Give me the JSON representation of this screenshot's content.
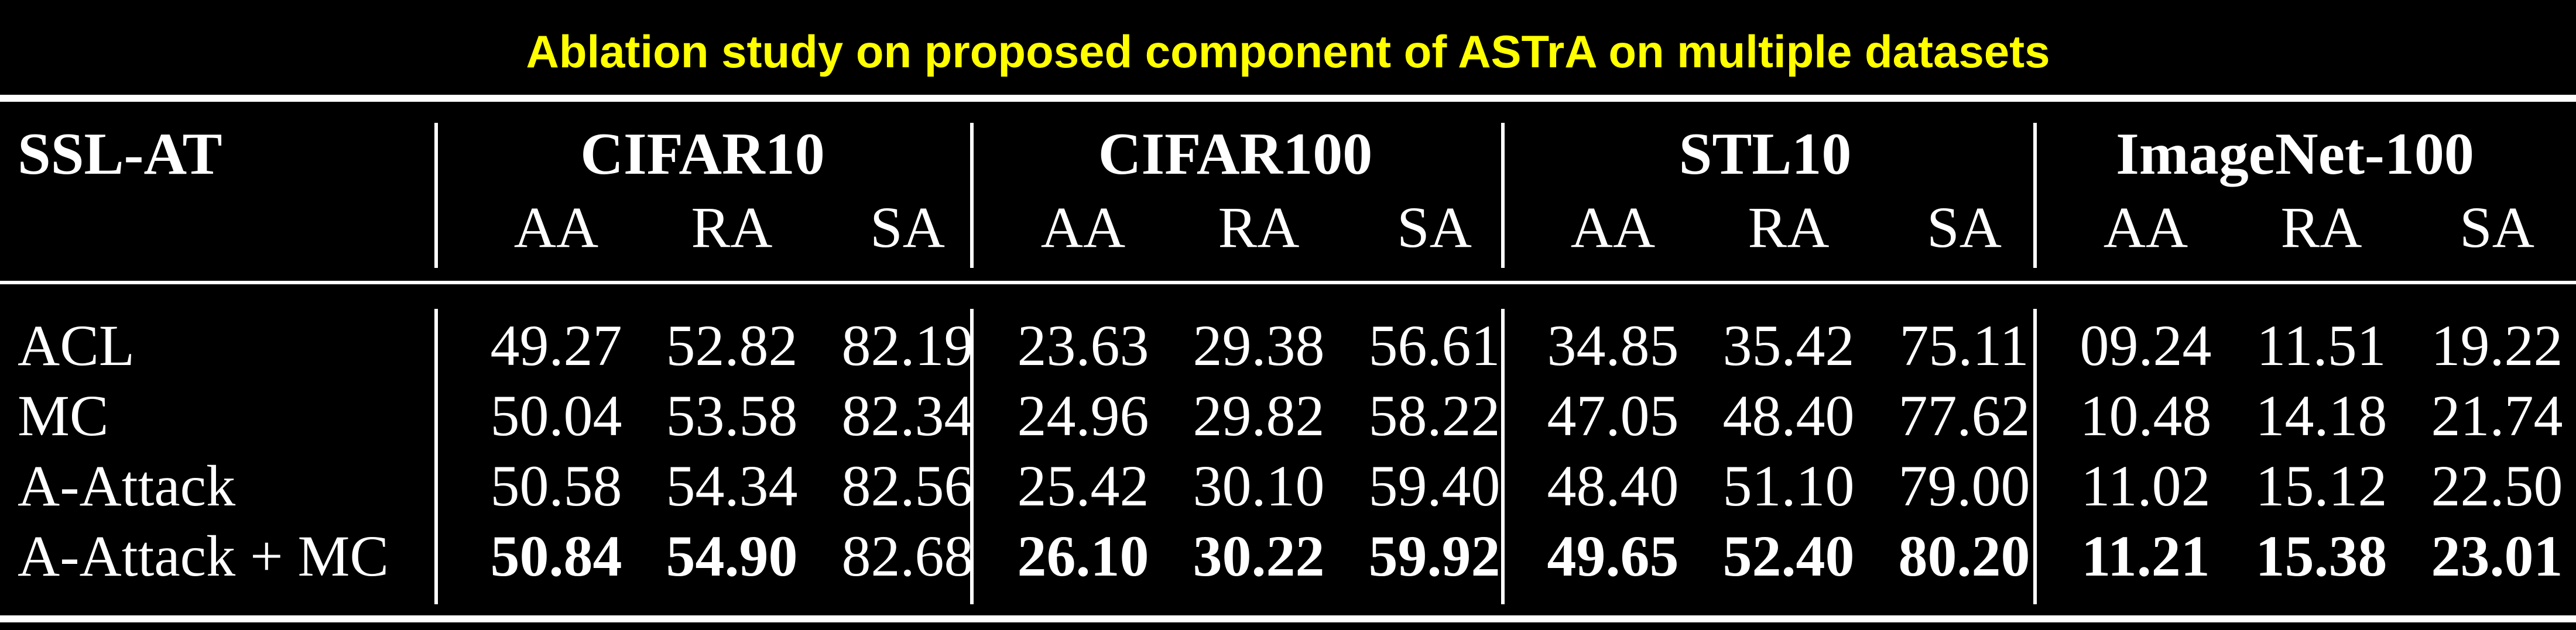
{
  "title": "Ablation study on proposed component of ASTrA on multiple datasets",
  "colors": {
    "title": "#ffff00",
    "background": "#000000",
    "text": "#ffffff"
  },
  "table": {
    "row_header": "SSL-AT",
    "groups": [
      "CIFAR10",
      "CIFAR100",
      "STL10",
      "ImageNet-100"
    ],
    "metrics": [
      "AA",
      "RA",
      "SA"
    ],
    "rows": [
      {
        "label": "ACL",
        "values": [
          "49.27",
          "52.82",
          "82.19",
          "23.63",
          "29.38",
          "56.61",
          "34.85",
          "35.42",
          "75.11",
          "09.24",
          "11.51",
          "19.22"
        ],
        "bold": [
          false,
          false,
          false,
          false,
          false,
          false,
          false,
          false,
          false,
          false,
          false,
          false
        ]
      },
      {
        "label": "MC",
        "values": [
          "50.04",
          "53.58",
          "82.34",
          "24.96",
          "29.82",
          "58.22",
          "47.05",
          "48.40",
          "77.62",
          "10.48",
          "14.18",
          "21.74"
        ],
        "bold": [
          false,
          false,
          false,
          false,
          false,
          false,
          false,
          false,
          false,
          false,
          false,
          false
        ]
      },
      {
        "label": "A-Attack",
        "values": [
          "50.58",
          "54.34",
          "82.56",
          "25.42",
          "30.10",
          "59.40",
          "48.40",
          "51.10",
          "79.00",
          "11.02",
          "15.12",
          "22.50"
        ],
        "bold": [
          false,
          false,
          false,
          false,
          false,
          false,
          false,
          false,
          false,
          false,
          false,
          false
        ]
      },
      {
        "label": "A-Attack + MC",
        "values": [
          "50.84",
          "54.90",
          "82.68",
          "26.10",
          "30.22",
          "59.92",
          "49.65",
          "52.40",
          "80.20",
          "11.21",
          "15.38",
          "23.01"
        ],
        "bold": [
          true,
          true,
          false,
          true,
          true,
          true,
          true,
          true,
          true,
          true,
          true,
          true
        ]
      }
    ]
  }
}
